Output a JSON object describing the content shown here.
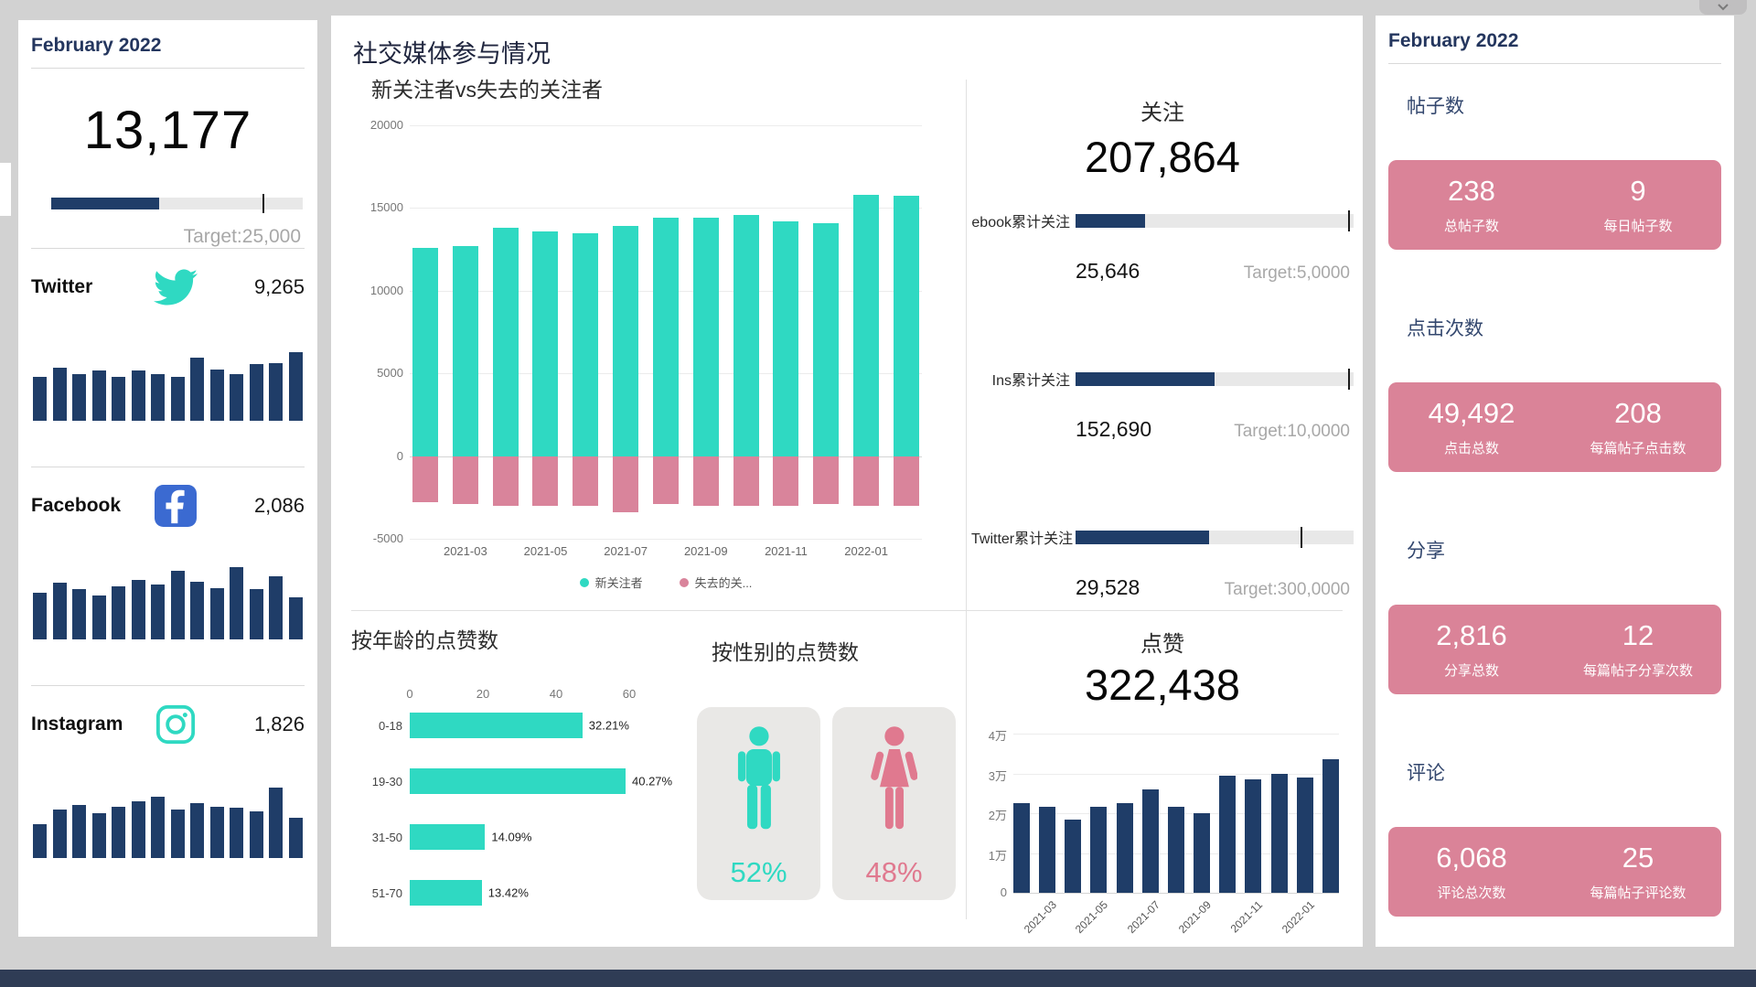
{
  "left_panel": {
    "header": "February 2022",
    "engagement_kpi": {
      "value": "13,177",
      "target_label": "Target:25,000",
      "fill_pct": 43,
      "marker_pct": 84
    },
    "channels": [
      {
        "name": "Twitter",
        "value": "9,265"
      },
      {
        "name": "Facebook",
        "value": "2,086"
      },
      {
        "name": "Instagram",
        "value": "1,826"
      }
    ]
  },
  "main": {
    "title": "社交媒体参与情况",
    "follow_panel": {
      "title": "关注",
      "total": "207,864",
      "kpis": [
        {
          "label": "ebook累计关注",
          "value": "25,646",
          "target": "Target:5,0000",
          "fill_pct": 25,
          "marker_pct": 98
        },
        {
          "label": "Ins累计关注",
          "value": "152,690",
          "target": "Target:10,0000",
          "fill_pct": 50,
          "marker_pct": 98
        },
        {
          "label": "Twitter累计关注",
          "value": "29,528",
          "target": "Target:300,0000",
          "fill_pct": 48,
          "marker_pct": 81
        }
      ]
    }
  },
  "right_panel": {
    "header": "February 2022",
    "sections": [
      {
        "title": "帖子数",
        "primary_value": "238",
        "primary_label": "总帖子数",
        "secondary_value": "9",
        "secondary_label": "每日帖子数"
      },
      {
        "title": "点击次数",
        "primary_value": "49,492",
        "primary_label": "点击总数",
        "secondary_value": "208",
        "secondary_label": "每篇帖子点击数"
      },
      {
        "title": "分享",
        "primary_value": "2,816",
        "primary_label": "分享总数",
        "secondary_value": "12",
        "secondary_label": "每篇帖子分享次数"
      },
      {
        "title": "评论",
        "primary_value": "6,068",
        "primary_label": "评论总次数",
        "secondary_value": "25",
        "secondary_label": "每篇帖子评论数"
      }
    ]
  },
  "chart_data": [
    {
      "id": "new_vs_lost_followers",
      "type": "bar",
      "title": "新关注者vs失去的关注者",
      "categories": [
        "2021-02",
        "2021-03",
        "2021-04",
        "2021-05",
        "2021-06",
        "2021-07",
        "2021-08",
        "2021-09",
        "2021-10",
        "2021-11",
        "2021-12",
        "2022-01",
        "2022-02"
      ],
      "series": [
        {
          "name": "新关注者",
          "values": [
            12600,
            12700,
            13800,
            13600,
            13500,
            13900,
            14400,
            14400,
            14600,
            14200,
            14100,
            15800,
            15750
          ]
        },
        {
          "name": "失去的关...",
          "values": [
            -2800,
            -2900,
            -3000,
            -3000,
            -3000,
            -3400,
            -2900,
            -3000,
            -3000,
            -3000,
            -2900,
            -3000,
            -3000
          ]
        }
      ],
      "ylim": [
        -5000,
        20000
      ],
      "yticks": [
        20000,
        15000,
        10000,
        5000,
        0,
        -5000
      ],
      "legend_position": "bottom",
      "x_label_step": 2
    },
    {
      "id": "likes_by_age",
      "type": "bar",
      "orientation": "horizontal",
      "title": "按年龄的点赞数",
      "categories": [
        "0-18",
        "19-30",
        "31-50",
        "51-70"
      ],
      "values": [
        47.2,
        59.0,
        20.6,
        19.7
      ],
      "labels": [
        "32.21%",
        "40.27%",
        "14.09%",
        "13.42%"
      ],
      "xlim": [
        0,
        60
      ],
      "xticks": [
        "0",
        "20",
        "40",
        "60"
      ]
    },
    {
      "id": "likes_by_gender",
      "type": "pie",
      "title": "按性别的点赞数",
      "categories": [
        "male",
        "female"
      ],
      "values": [
        52,
        48
      ],
      "labels": [
        "52%",
        "48%"
      ]
    },
    {
      "id": "likes_monthly",
      "type": "bar",
      "title": "点赞",
      "total_label": "322,438",
      "categories": [
        "2021-02",
        "2021-03",
        "2021-04",
        "2021-05",
        "2021-06",
        "2021-07",
        "2021-08",
        "2021-09",
        "2021-10",
        "2021-11",
        "2021-12",
        "2022-01",
        "2022-02"
      ],
      "values": [
        22500,
        21500,
        18500,
        21500,
        22500,
        26000,
        21500,
        20000,
        29500,
        28500,
        30000,
        29000,
        33500
      ],
      "ylim": [
        0,
        40000
      ],
      "yticks": [
        {
          "v": 40000,
          "label": "4万"
        },
        {
          "v": 30000,
          "label": "3万"
        },
        {
          "v": 20000,
          "label": "2万"
        },
        {
          "v": 10000,
          "label": "1万"
        },
        {
          "v": 0,
          "label": "0"
        }
      ],
      "x_label_step": 2
    },
    {
      "id": "twitter_daily",
      "type": "bar",
      "title": "Twitter",
      "values": [
        55,
        66,
        58,
        62,
        55,
        62,
        58,
        55,
        78,
        64,
        58,
        70,
        72,
        85
      ]
    },
    {
      "id": "facebook_daily",
      "type": "bar",
      "title": "Facebook",
      "values": [
        58,
        70,
        62,
        55,
        66,
        74,
        68,
        85,
        72,
        64,
        90,
        62,
        78,
        52
      ]
    },
    {
      "id": "instagram_daily",
      "type": "bar",
      "title": "Instagram",
      "values": [
        42,
        60,
        66,
        56,
        64,
        70,
        76,
        60,
        68,
        64,
        62,
        58,
        88,
        50
      ]
    }
  ],
  "colors": {
    "teal": "#2fd9c2",
    "pink": "#d9849b",
    "navy": "#1f3d68",
    "card_pink": "#da8398",
    "gray_text": "#a8a8a8"
  }
}
